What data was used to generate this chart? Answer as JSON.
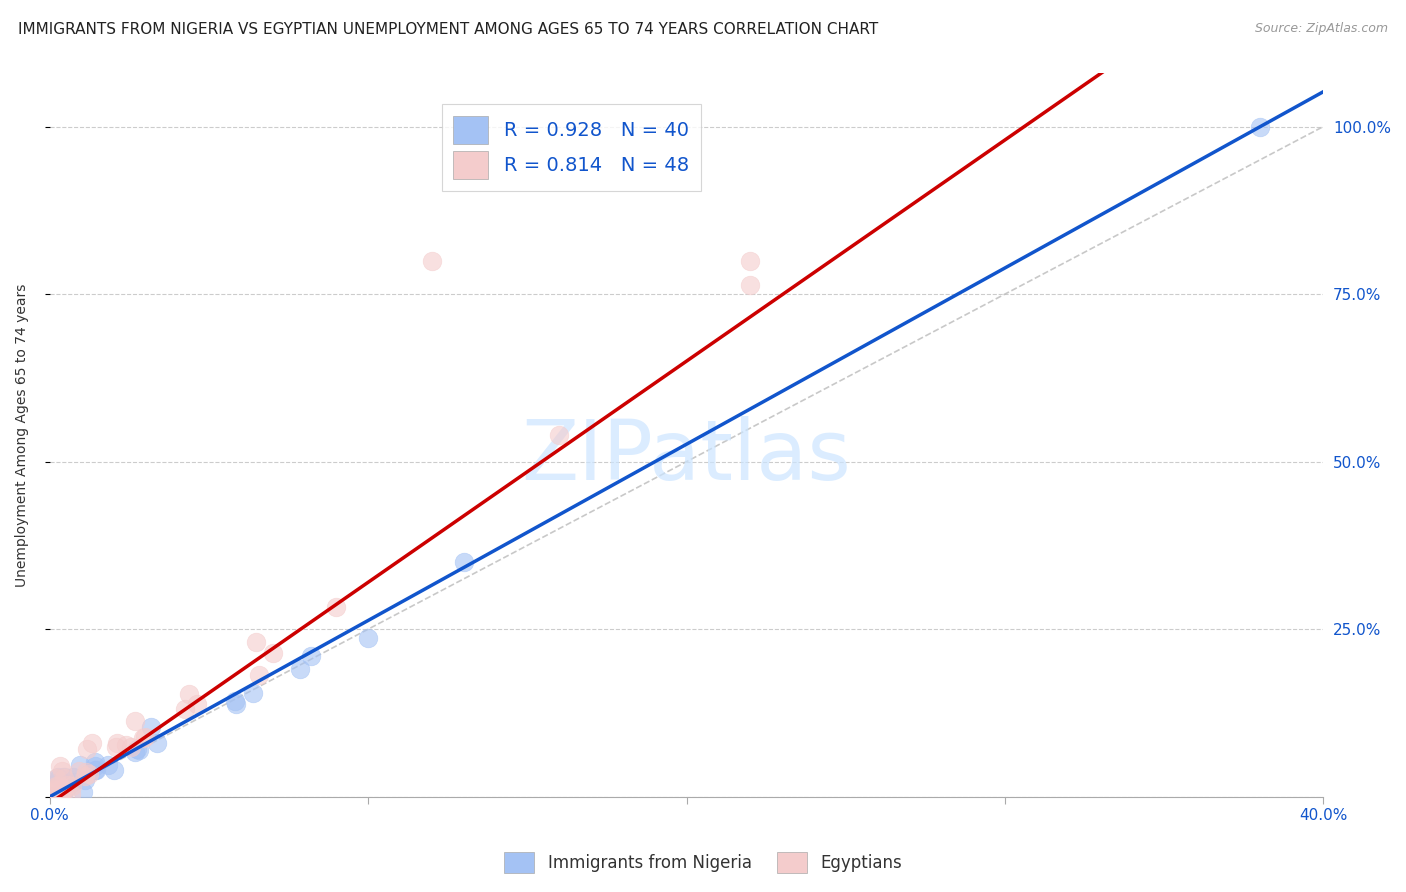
{
  "title": "IMMIGRANTS FROM NIGERIA VS EGYPTIAN UNEMPLOYMENT AMONG AGES 65 TO 74 YEARS CORRELATION CHART",
  "source": "Source: ZipAtlas.com",
  "ylabel": "Unemployment Among Ages 65 to 74 years",
  "xlim": [
    0.0,
    0.4
  ],
  "ylim": [
    0.0,
    1.08
  ],
  "xticks": [
    0.0,
    0.1,
    0.2,
    0.3,
    0.4
  ],
  "xtick_labels": [
    "0.0%",
    "",
    "",
    "",
    "40.0%"
  ],
  "yticks_right": [
    0.0,
    0.25,
    0.5,
    0.75,
    1.0
  ],
  "ytick_labels_right": [
    "",
    "25.0%",
    "50.0%",
    "75.0%",
    "100.0%"
  ],
  "blue_fill": "#a4c2f4",
  "pink_fill": "#f4cccc",
  "blue_line_color": "#1155cc",
  "pink_line_color": "#cc0000",
  "diag_color": "#bbbbbb",
  "legend_text_color": "#1155cc",
  "watermark": "ZIPatlas",
  "R_blue": 0.928,
  "N_blue": 40,
  "R_pink": 0.814,
  "N_pink": 48,
  "title_fontsize": 11,
  "axis_label_fontsize": 10,
  "tick_fontsize": 11,
  "legend_fontsize": 14,
  "background_color": "#ffffff",
  "grid_color": "#cccccc",
  "blue_line_slope": 2.63,
  "blue_line_intercept": 0.0,
  "pink_line_slope": 3.3,
  "pink_line_intercept": -0.01
}
